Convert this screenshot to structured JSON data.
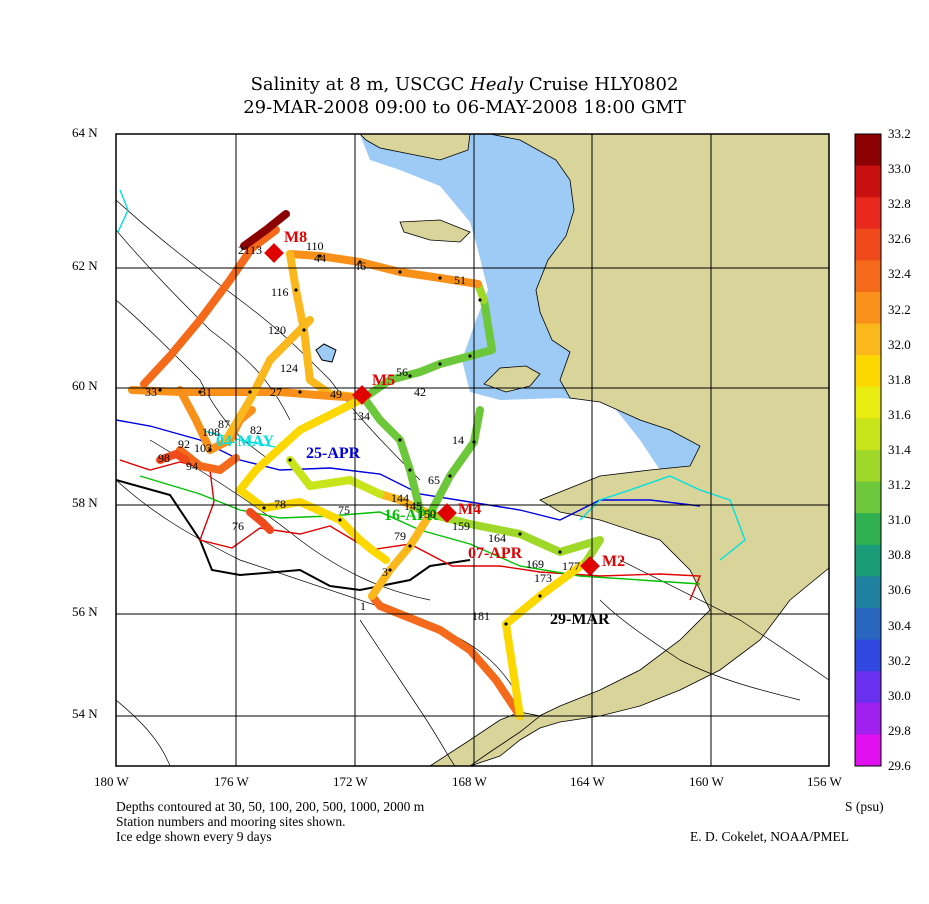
{
  "title": {
    "line1_prefix": "Salinity at 8 m, USCGC ",
    "line1_italic": "Healy",
    "line1_suffix": " Cruise HLY0802",
    "line2": "29-MAR-2008 09:00 to 06-MAY-2008 18:00 GMT"
  },
  "axes": {
    "lat_labels": [
      "64 N",
      "62 N",
      "60 N",
      "58 N",
      "56 N",
      "54 N"
    ],
    "lon_labels": [
      "180 W",
      "176 W",
      "172 W",
      "168 W",
      "164 W",
      "160 W",
      "156 W"
    ]
  },
  "colorbar": {
    "unit_label": "S (psu)",
    "values": [
      "33.2",
      "33.0",
      "32.8",
      "32.6",
      "32.4",
      "32.2",
      "32.0",
      "31.8",
      "31.6",
      "31.4",
      "31.2",
      "31.0",
      "30.8",
      "30.6",
      "30.4",
      "30.2",
      "30.0",
      "29.8",
      "29.6"
    ],
    "colors": [
      "#8b0000",
      "#c81010",
      "#e8281c",
      "#f04a1c",
      "#f46a1a",
      "#f8901a",
      "#fbb81c",
      "#fdd800",
      "#e8ec10",
      "#c8e41a",
      "#a0d82a",
      "#6cc83a",
      "#30b050",
      "#1a9c78",
      "#2080a0",
      "#2866c0",
      "#3048e0",
      "#6a30f0",
      "#a020f0",
      "#e010f0"
    ]
  },
  "moorings": [
    {
      "label": "M8"
    },
    {
      "label": "M5"
    },
    {
      "label": "M4"
    },
    {
      "label": "M2"
    }
  ],
  "ice_edges": [
    {
      "label": "29-MAR",
      "color": "#000000"
    },
    {
      "label": "07-APR",
      "color": "#e00000"
    },
    {
      "label": "16-APR",
      "color": "#00c000"
    },
    {
      "label": "25-APR",
      "color": "#0000e0"
    },
    {
      "label": "04-MAY",
      "color": "#00e0e0"
    }
  ],
  "stations": [
    "110",
    "44",
    "46",
    "51",
    "116",
    "120",
    "124",
    "56",
    "42",
    "49",
    "134",
    "14",
    "65",
    "144",
    "145",
    "150",
    "159",
    "164",
    "169",
    "173",
    "177",
    "181",
    "79",
    "3",
    "1",
    "78",
    "76",
    "75",
    "82",
    "87",
    "92",
    "98",
    "94",
    "103",
    "108",
    "27",
    "31",
    "33",
    "21",
    "13"
  ],
  "notes": {
    "line1": "Depths contoured at 30, 50, 100, 200, 500, 1000, 2000 m",
    "line2": "Station numbers and mooring sites shown.",
    "line3": "Ice edge shown every 9 days",
    "credit": "E. D. Cokelet, NOAA/PMEL"
  },
  "colors": {
    "land": "#d8d49a",
    "water_ice_free": "#9dcbf6",
    "mooring": "#e00000"
  }
}
